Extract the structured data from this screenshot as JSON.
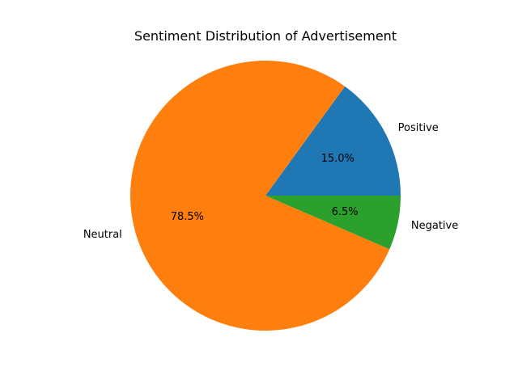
{
  "chart_data": {
    "type": "pie",
    "title": "Sentiment Distribution of Advertisement",
    "labels": [
      "Positive",
      "Neutral",
      "Negative"
    ],
    "values": [
      15.0,
      78.5,
      6.5
    ],
    "percent_labels": [
      "15.0%",
      "78.5%",
      "6.5%"
    ],
    "colors": [
      "#1f77b4",
      "#ff7f0e",
      "#2ca02c"
    ],
    "start_angle_deg": 0,
    "direction": "counterclockwise",
    "legend": "none"
  }
}
